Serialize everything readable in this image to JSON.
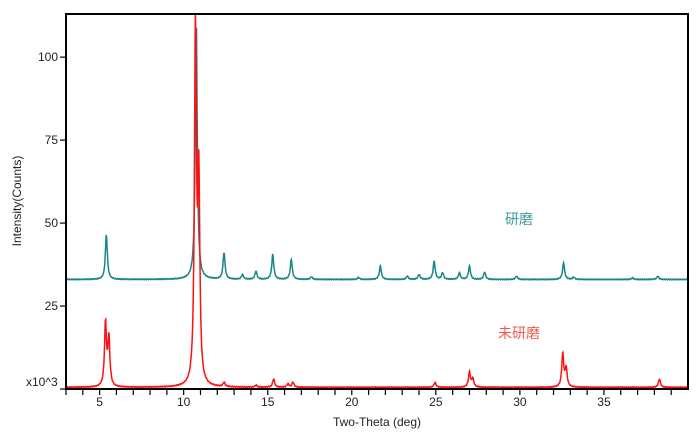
{
  "chart_data": {
    "type": "line",
    "title": "",
    "xlabel": "Two-Theta (deg)",
    "ylabel": "Intensity(Counts)",
    "y_multiplier_label": "x10^3",
    "xlim": [
      3,
      40
    ],
    "ylim": [
      0,
      113
    ],
    "x_ticks": [
      5,
      10,
      15,
      20,
      25,
      30,
      35
    ],
    "x_tick_labels": [
      "5",
      "10",
      "15",
      "20",
      "25",
      "30",
      "35"
    ],
    "y_ticks": [
      25,
      50,
      75,
      100
    ],
    "y_tick_labels": [
      "25",
      "50",
      "75",
      "100"
    ],
    "grid": false,
    "series": [
      {
        "name": "研磨",
        "color": "#1a8585",
        "baseline": 33,
        "peaks": [
          {
            "x": 5.4,
            "y": 46.5
          },
          {
            "x": 10.75,
            "y": 110
          },
          {
            "x": 12.4,
            "y": 41
          },
          {
            "x": 13.5,
            "y": 34.4
          },
          {
            "x": 14.3,
            "y": 35.5
          },
          {
            "x": 15.3,
            "y": 40.5
          },
          {
            "x": 16.4,
            "y": 39
          },
          {
            "x": 17.6,
            "y": 33.8
          },
          {
            "x": 20.4,
            "y": 33.6
          },
          {
            "x": 21.7,
            "y": 37
          },
          {
            "x": 23.3,
            "y": 34
          },
          {
            "x": 24.0,
            "y": 34.5
          },
          {
            "x": 24.9,
            "y": 38.5
          },
          {
            "x": 25.4,
            "y": 35
          },
          {
            "x": 26.4,
            "y": 35
          },
          {
            "x": 27.0,
            "y": 37
          },
          {
            "x": 27.9,
            "y": 35.2
          },
          {
            "x": 29.8,
            "y": 34
          },
          {
            "x": 32.6,
            "y": 38
          },
          {
            "x": 33.2,
            "y": 33.7
          },
          {
            "x": 36.7,
            "y": 33.5
          },
          {
            "x": 38.2,
            "y": 34
          }
        ]
      },
      {
        "name": "未研磨",
        "color": "#ff1010",
        "baseline": 0.5,
        "peaks": [
          {
            "x": 5.35,
            "y": 19.5
          },
          {
            "x": 5.55,
            "y": 15
          },
          {
            "x": 10.7,
            "y": 108
          },
          {
            "x": 10.9,
            "y": 60
          },
          {
            "x": 12.4,
            "y": 1.8
          },
          {
            "x": 14.3,
            "y": 1.1
          },
          {
            "x": 15.35,
            "y": 3
          },
          {
            "x": 16.2,
            "y": 1.5
          },
          {
            "x": 16.5,
            "y": 2
          },
          {
            "x": 24.95,
            "y": 2
          },
          {
            "x": 27.0,
            "y": 5
          },
          {
            "x": 27.2,
            "y": 3
          },
          {
            "x": 32.55,
            "y": 10.5
          },
          {
            "x": 32.75,
            "y": 6
          },
          {
            "x": 38.3,
            "y": 3
          }
        ]
      }
    ]
  }
}
